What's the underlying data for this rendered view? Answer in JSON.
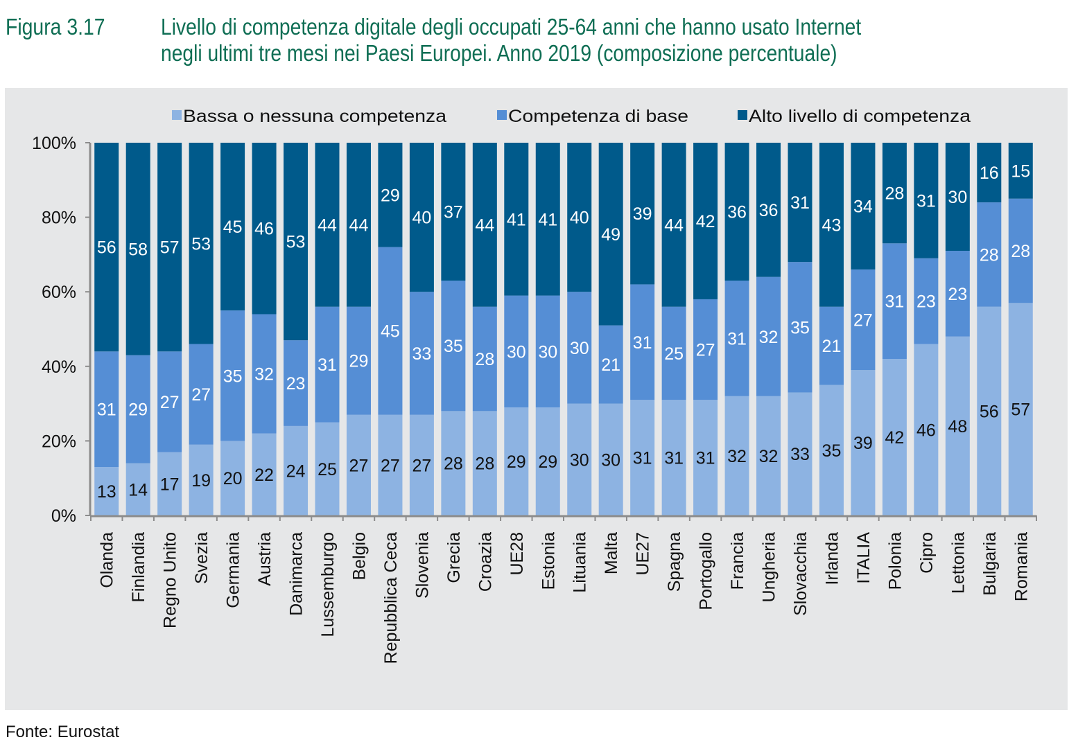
{
  "figure": {
    "number": "Figura 3.17",
    "title_line1": "Livello di competenza digitale degli occupati 25-64 anni che hanno usato Internet",
    "title_line2": "negli ultimi tre mesi nei Paesi Europei. Anno 2019",
    "title_suffix": " (composizione percentuale)",
    "source": "Fonte: Eurostat"
  },
  "colors": {
    "low": "#8db3e2",
    "base": "#558ed5",
    "high": "#005a8b",
    "title": "#0f6e54",
    "panel": "#e6e7e8",
    "axis": "#8c8c8c"
  },
  "chart_data": {
    "type": "bar",
    "stacked": true,
    "title": "Livello di competenza digitale degli occupati 25-64 anni che hanno usato Internet negli ultimi tre mesi nei Paesi Europei. Anno 2019 (composizione percentuale)",
    "xlabel": "",
    "ylabel": "",
    "ylim": [
      0,
      100
    ],
    "yticks": [
      "0%",
      "20%",
      "40%",
      "60%",
      "80%",
      "100%"
    ],
    "legend_position": "top",
    "grid": false,
    "categories": [
      "Olanda",
      "Finlandia",
      "Regno Unito",
      "Svezia",
      "Germania",
      "Austria",
      "Danimarca",
      "Lussemburgo",
      "Belgio",
      "Repubblica Ceca",
      "Slovenia",
      "Grecia",
      "Croazia",
      "UE28",
      "Estonia",
      "Lituania",
      "Malta",
      "UE27",
      "Spagna",
      "Portogallo",
      "Francia",
      "Ungheria",
      "Slovacchia",
      "Irlanda",
      "ITALIA",
      "Polonia",
      "Cipro",
      "Lettonia",
      "Bulgaria",
      "Romania"
    ],
    "series": [
      {
        "name": "Bassa o nessuna competenza",
        "key": "low",
        "values": [
          13,
          14,
          17,
          19,
          20,
          22,
          24,
          25,
          27,
          27,
          27,
          28,
          28,
          29,
          29,
          30,
          30,
          31,
          31,
          31,
          32,
          32,
          33,
          35,
          39,
          42,
          46,
          48,
          56,
          57
        ]
      },
      {
        "name": "Competenza di base",
        "key": "base",
        "values": [
          31,
          29,
          27,
          27,
          35,
          32,
          23,
          31,
          29,
          45,
          33,
          35,
          28,
          30,
          30,
          30,
          21,
          31,
          25,
          27,
          31,
          32,
          35,
          21,
          27,
          31,
          23,
          23,
          28,
          28
        ]
      },
      {
        "name": "Alto livello di competenza",
        "key": "high",
        "values": [
          56,
          58,
          57,
          53,
          45,
          46,
          53,
          44,
          44,
          29,
          40,
          37,
          44,
          41,
          41,
          40,
          49,
          39,
          44,
          42,
          36,
          36,
          31,
          43,
          34,
          28,
          31,
          30,
          16,
          15
        ]
      }
    ]
  }
}
